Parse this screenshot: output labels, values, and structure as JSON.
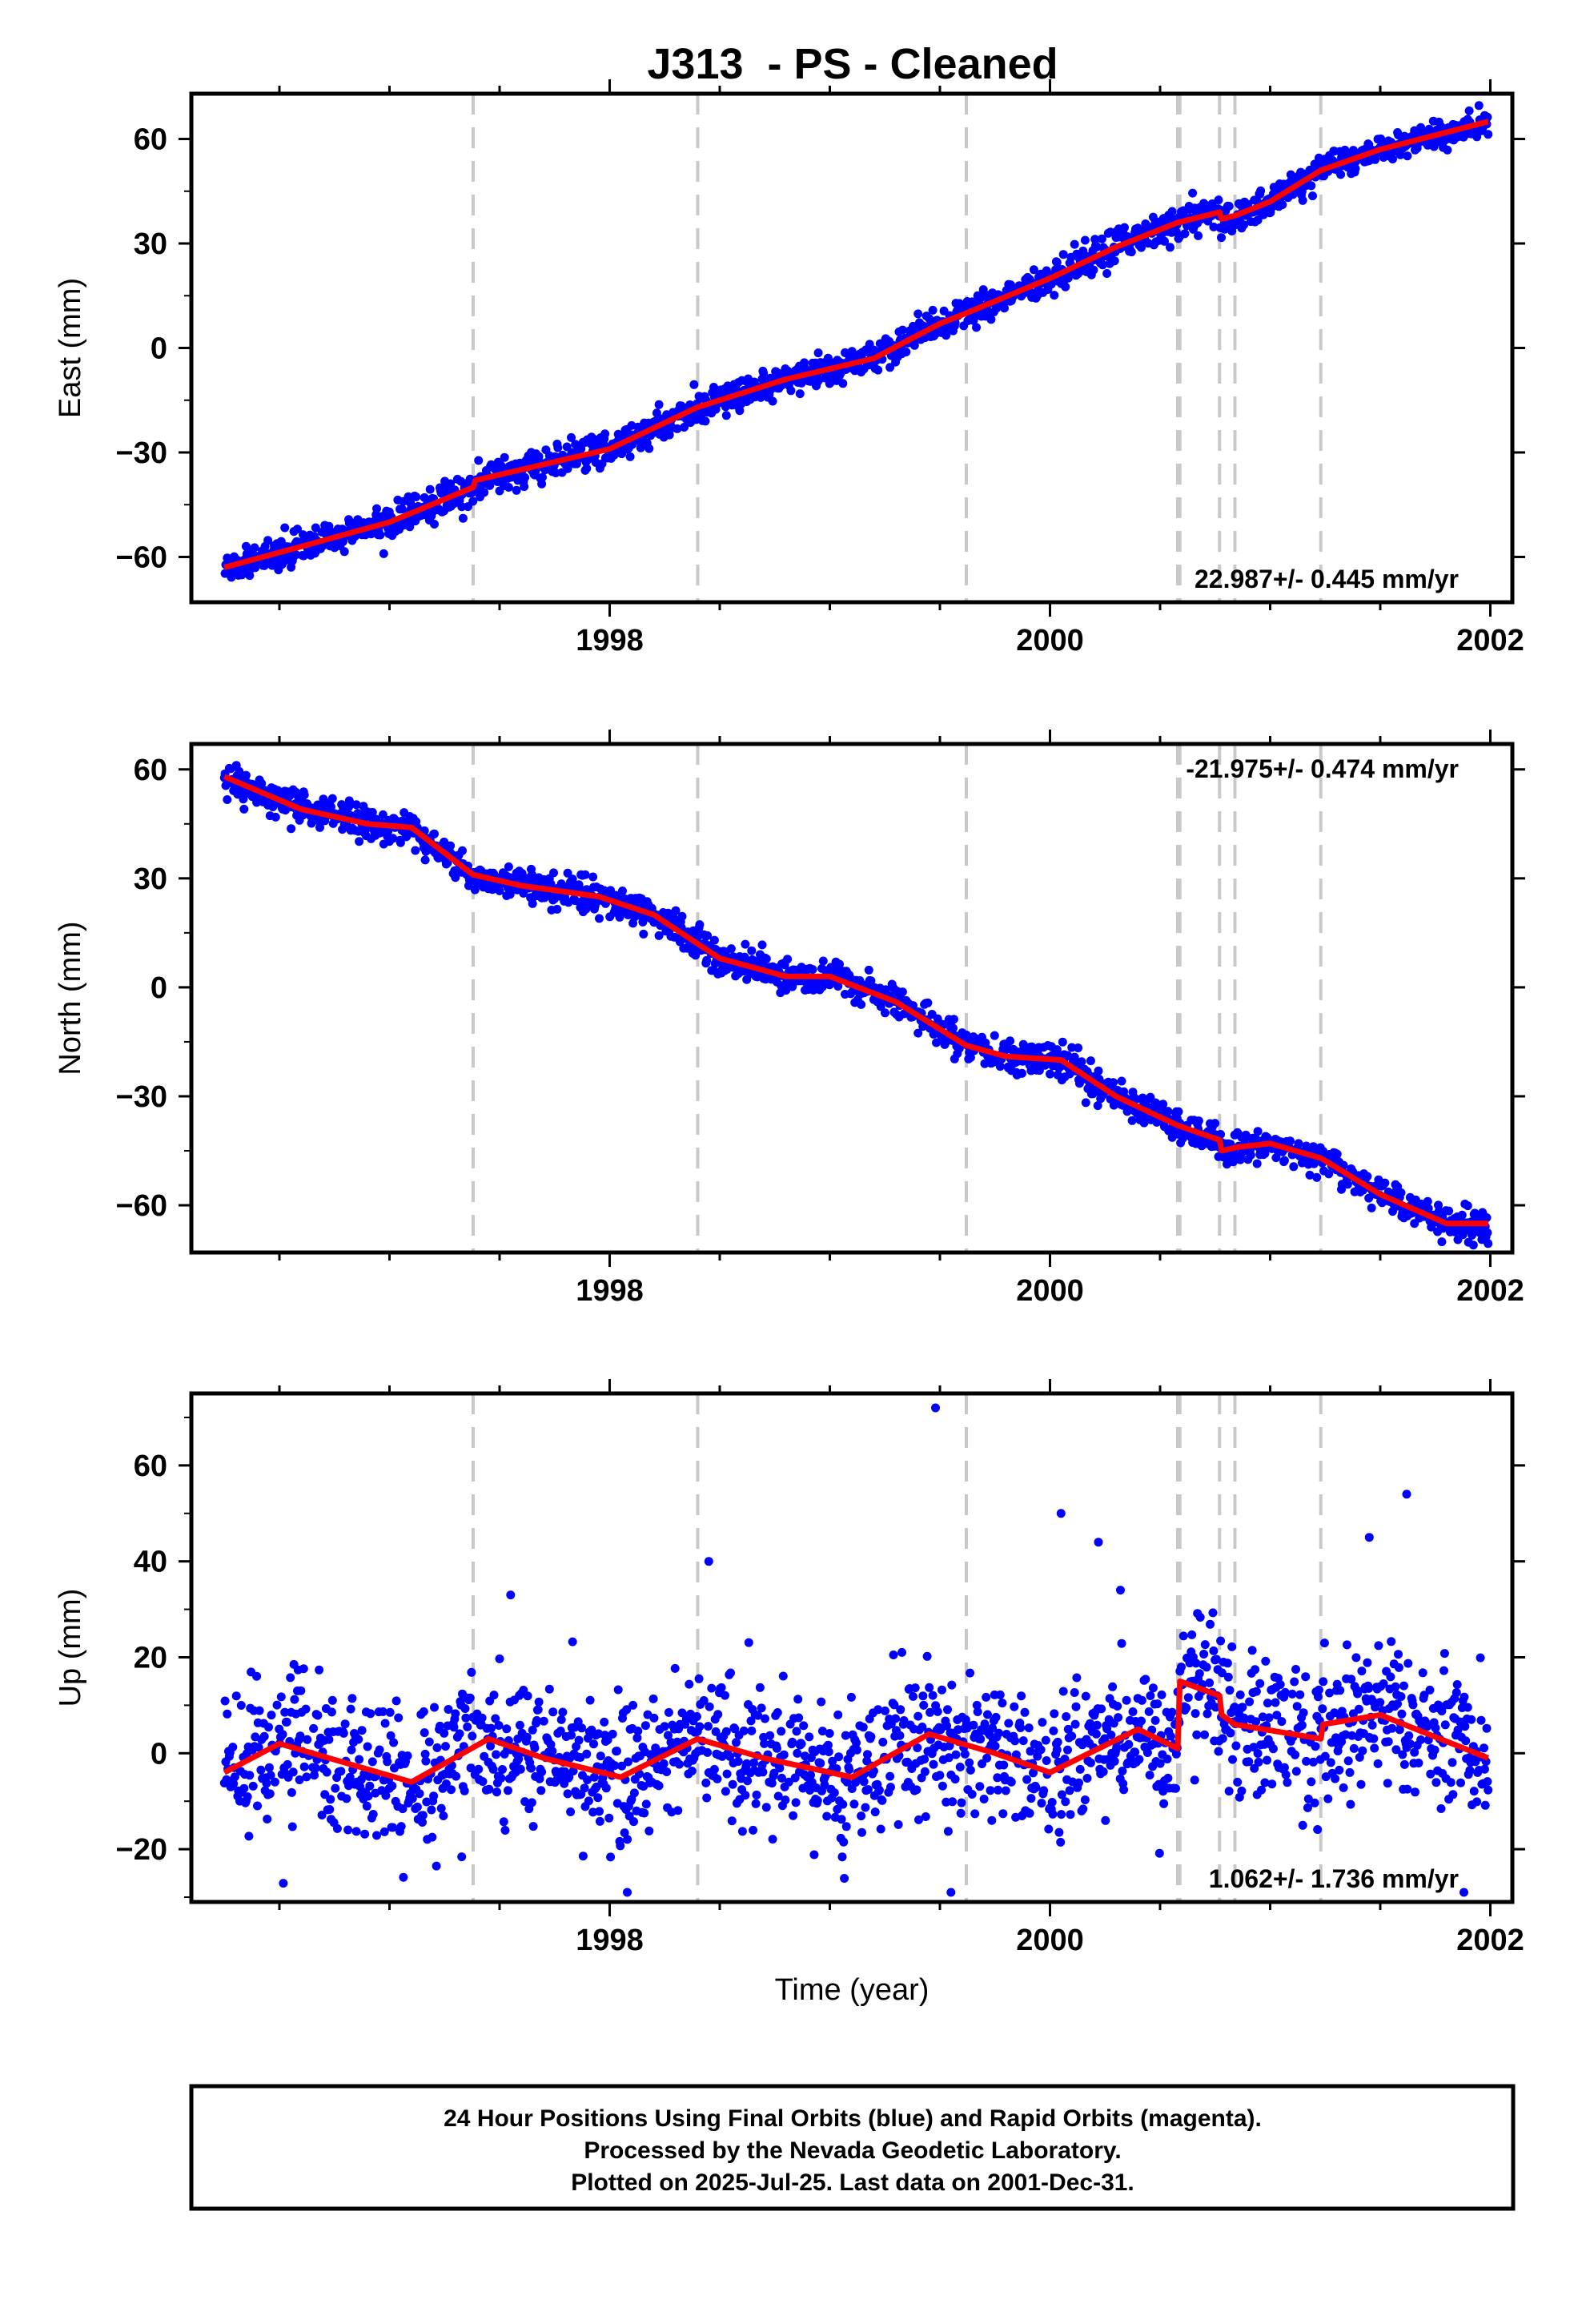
{
  "figure": {
    "title": "J313  - PS - Cleaned",
    "footer_lines": [
      "24 Hour Positions Using Final Orbits (blue) and Rapid Orbits (magenta).",
      "Processed by the Nevada Geodetic Laboratory.",
      "Plotted on 2025-Jul-25. Last data on 2001-Dec-31."
    ],
    "colors": {
      "points": "#0000ff",
      "fit": "#ff0000",
      "event_lines": "#c8c8c8",
      "frame": "#000000"
    }
  },
  "chart_data": [
    {
      "type": "scatter",
      "component": "East",
      "ylabel": "East (mm)",
      "xlabel": "",
      "xlim": [
        1996.1,
        2002.1
      ],
      "ylim": [
        -73,
        73
      ],
      "xticks": [
        1998,
        2000,
        2002
      ],
      "yticks": [
        -60,
        -30,
        0,
        30,
        60
      ],
      "rate_label": "22.987+/- 0.445 mm/yr",
      "rate_position": "bottom-right",
      "x_start": 1996.25,
      "x_end": 2001.99,
      "offset_events": [
        1997.38,
        1998.4,
        1999.62,
        2000.58,
        2000.59,
        2000.77,
        2000.84,
        2001.23
      ],
      "trend_knots": [
        [
          1996.25,
          -63
        ],
        [
          1996.6,
          -57
        ],
        [
          1997.0,
          -50
        ],
        [
          1997.38,
          -40
        ],
        [
          1997.39,
          -38
        ],
        [
          1998.0,
          -29
        ],
        [
          1998.4,
          -17
        ],
        [
          1998.8,
          -9
        ],
        [
          1999.2,
          -3
        ],
        [
          1999.5,
          7
        ],
        [
          1999.62,
          10
        ],
        [
          2000.0,
          20
        ],
        [
          2000.3,
          29
        ],
        [
          2000.58,
          36
        ],
        [
          2000.77,
          39
        ],
        [
          2000.78,
          37
        ],
        [
          2000.84,
          38
        ],
        [
          2001.0,
          42
        ],
        [
          2001.23,
          51
        ],
        [
          2001.5,
          57
        ],
        [
          2001.99,
          65
        ]
      ],
      "noise_mm": 2.2,
      "outliers": []
    },
    {
      "type": "scatter",
      "component": "North",
      "ylabel": "North (mm)",
      "xlabel": "",
      "xlim": [
        1996.1,
        2002.1
      ],
      "ylim": [
        -73,
        67
      ],
      "xticks": [
        1998,
        2000,
        2002
      ],
      "yticks": [
        -60,
        -30,
        0,
        30,
        60
      ],
      "rate_label": "-21.975+/- 0.474 mm/yr",
      "rate_position": "top-right",
      "x_start": 1996.25,
      "x_end": 2001.99,
      "offset_events": [
        1997.38,
        1998.4,
        1999.62,
        2000.58,
        2000.59,
        2000.77,
        2000.84,
        2001.23
      ],
      "trend_knots": [
        [
          1996.25,
          58
        ],
        [
          1996.6,
          49
        ],
        [
          1996.9,
          45
        ],
        [
          1997.1,
          44
        ],
        [
          1997.38,
          31
        ],
        [
          1997.6,
          28
        ],
        [
          1997.95,
          25
        ],
        [
          1998.2,
          20
        ],
        [
          1998.5,
          8
        ],
        [
          1998.8,
          3
        ],
        [
          1999.0,
          3
        ],
        [
          1999.3,
          -4
        ],
        [
          1999.62,
          -16
        ],
        [
          1999.8,
          -19
        ],
        [
          2000.05,
          -20
        ],
        [
          2000.3,
          -30
        ],
        [
          2000.58,
          -38
        ],
        [
          2000.77,
          -42
        ],
        [
          2000.78,
          -45
        ],
        [
          2000.85,
          -44
        ],
        [
          2001.0,
          -43
        ],
        [
          2001.23,
          -47
        ],
        [
          2001.5,
          -57
        ],
        [
          2001.8,
          -65
        ],
        [
          2001.99,
          -65
        ]
      ],
      "noise_mm": 2.2,
      "outliers": []
    },
    {
      "type": "scatter",
      "component": "Up",
      "ylabel": "Up (mm)",
      "xlabel": "Time (year)",
      "xlim": [
        1996.1,
        2002.1
      ],
      "ylim": [
        -31,
        75
      ],
      "xticks": [
        1998,
        2000,
        2002
      ],
      "yticks": [
        -20,
        0,
        20,
        40,
        60
      ],
      "rate_label": "1.062+/- 1.736 mm/yr",
      "rate_position": "bottom-right",
      "x_start": 1996.25,
      "x_end": 2001.99,
      "offset_events": [
        1997.38,
        1998.4,
        1999.62,
        2000.58,
        2000.59,
        2000.77,
        2000.84,
        2001.23
      ],
      "trend_knots": [
        [
          1996.25,
          -4
        ],
        [
          1996.5,
          2
        ],
        [
          1996.8,
          -2
        ],
        [
          1997.1,
          -6
        ],
        [
          1997.45,
          3
        ],
        [
          1997.7,
          -1
        ],
        [
          1998.05,
          -5
        ],
        [
          1998.4,
          3
        ],
        [
          1998.7,
          -1
        ],
        [
          1999.1,
          -5
        ],
        [
          1999.45,
          4
        ],
        [
          1999.75,
          0
        ],
        [
          2000.0,
          -4
        ],
        [
          2000.4,
          5
        ],
        [
          2000.58,
          1
        ],
        [
          2000.59,
          15
        ],
        [
          2000.77,
          12
        ],
        [
          2000.78,
          8
        ],
        [
          2000.84,
          6
        ],
        [
          2001.23,
          3
        ],
        [
          2001.24,
          6
        ],
        [
          2001.5,
          8
        ],
        [
          2001.99,
          -1
        ]
      ],
      "noise_mm": 7.5,
      "outliers": [
        [
          1999.48,
          72
        ],
        [
          2000.05,
          50
        ],
        [
          2000.22,
          44
        ],
        [
          2001.62,
          54
        ],
        [
          2001.45,
          45
        ],
        [
          1998.45,
          40
        ],
        [
          2000.32,
          34
        ],
        [
          1997.55,
          33
        ],
        [
          1998.08,
          -29
        ],
        [
          1999.55,
          -29
        ],
        [
          2001.88,
          -29
        ]
      ]
    }
  ]
}
